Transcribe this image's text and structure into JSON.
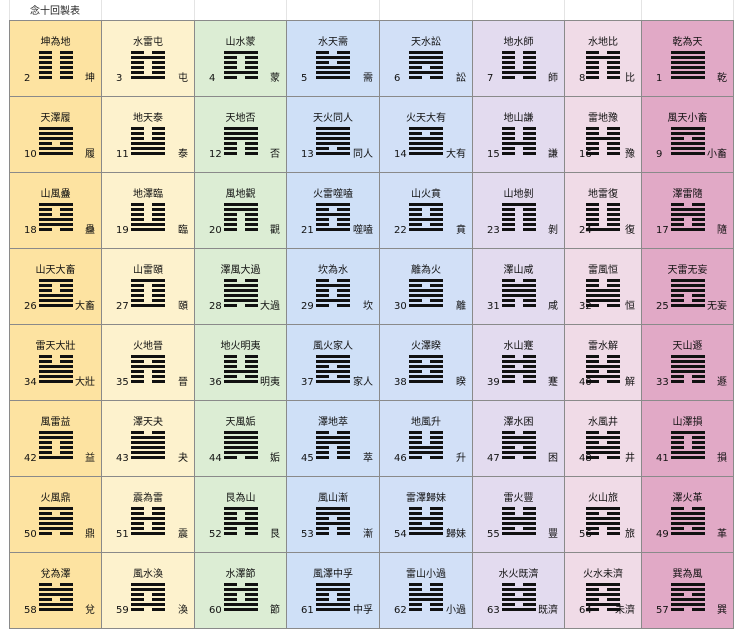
{
  "title": "念十回製表",
  "colors": [
    "#fde3a1",
    "#fdf2cd",
    "#dcedd4",
    "#cfe0f7",
    "#d2e0f7",
    "#e3dbef",
    "#f0dbe7",
    "#e1a9c6"
  ],
  "rows": [
    [
      {
        "num": "2",
        "name": "坤為地",
        "short": "坤",
        "lines": [
          0,
          0,
          0,
          0,
          0,
          0
        ]
      },
      {
        "num": "3",
        "name": "水雷屯",
        "short": "屯",
        "lines": [
          1,
          0,
          0,
          0,
          1,
          0
        ]
      },
      {
        "num": "4",
        "name": "山水蒙",
        "short": "蒙",
        "lines": [
          0,
          1,
          0,
          0,
          0,
          1
        ]
      },
      {
        "num": "5",
        "name": "水天需",
        "short": "需",
        "lines": [
          1,
          1,
          1,
          0,
          1,
          0
        ]
      },
      {
        "num": "6",
        "name": "天水訟",
        "short": "訟",
        "lines": [
          0,
          1,
          0,
          1,
          1,
          1
        ]
      },
      {
        "num": "7",
        "name": "地水師",
        "short": "師",
        "lines": [
          0,
          1,
          0,
          0,
          0,
          0
        ]
      },
      {
        "num": "8",
        "name": "水地比",
        "short": "比",
        "lines": [
          0,
          0,
          0,
          0,
          1,
          0
        ]
      },
      {
        "num": "1",
        "name": "乾為天",
        "short": "乾",
        "lines": [
          1,
          1,
          1,
          1,
          1,
          1
        ]
      }
    ],
    [
      {
        "num": "10",
        "name": "天澤履",
        "short": "履",
        "lines": [
          1,
          1,
          0,
          1,
          1,
          1
        ]
      },
      {
        "num": "11",
        "name": "地天泰",
        "short": "泰",
        "lines": [
          1,
          1,
          1,
          0,
          0,
          0
        ]
      },
      {
        "num": "12",
        "name": "天地否",
        "short": "否",
        "lines": [
          0,
          0,
          0,
          1,
          1,
          1
        ]
      },
      {
        "num": "13",
        "name": "天火同人",
        "short": "同人",
        "lines": [
          1,
          0,
          1,
          1,
          1,
          1
        ]
      },
      {
        "num": "14",
        "name": "火天大有",
        "short": "大有",
        "lines": [
          1,
          1,
          1,
          1,
          0,
          1
        ]
      },
      {
        "num": "15",
        "name": "地山謙",
        "short": "謙",
        "lines": [
          0,
          0,
          1,
          0,
          0,
          0
        ]
      },
      {
        "num": "16",
        "name": "雷地豫",
        "short": "豫",
        "lines": [
          0,
          0,
          0,
          1,
          0,
          0
        ]
      },
      {
        "num": "9",
        "name": "風天小畜",
        "short": "小畜",
        "lines": [
          1,
          1,
          1,
          0,
          1,
          1
        ]
      }
    ],
    [
      {
        "num": "18",
        "name": "山風蠱",
        "short": "蠱",
        "lines": [
          0,
          1,
          1,
          0,
          0,
          1
        ]
      },
      {
        "num": "19",
        "name": "地澤臨",
        "short": "臨",
        "lines": [
          1,
          1,
          0,
          0,
          0,
          0
        ]
      },
      {
        "num": "20",
        "name": "風地觀",
        "short": "觀",
        "lines": [
          0,
          0,
          0,
          0,
          1,
          1
        ]
      },
      {
        "num": "21",
        "name": "火雷噬嗑",
        "short": "噬嗑",
        "lines": [
          1,
          0,
          0,
          1,
          0,
          1
        ]
      },
      {
        "num": "22",
        "name": "山火賁",
        "short": "賁",
        "lines": [
          1,
          0,
          1,
          0,
          0,
          1
        ]
      },
      {
        "num": "23",
        "name": "山地剝",
        "short": "剝",
        "lines": [
          0,
          0,
          0,
          0,
          0,
          1
        ]
      },
      {
        "num": "24",
        "name": "地雷復",
        "short": "復",
        "lines": [
          1,
          0,
          0,
          0,
          0,
          0
        ]
      },
      {
        "num": "17",
        "name": "澤雷隨",
        "short": "隨",
        "lines": [
          1,
          0,
          0,
          1,
          1,
          0
        ]
      }
    ],
    [
      {
        "num": "26",
        "name": "山天大畜",
        "short": "大畜",
        "lines": [
          1,
          1,
          1,
          0,
          0,
          1
        ]
      },
      {
        "num": "27",
        "name": "山雷頤",
        "short": "頤",
        "lines": [
          1,
          0,
          0,
          0,
          0,
          1
        ]
      },
      {
        "num": "28",
        "name": "澤風大過",
        "short": "大過",
        "lines": [
          0,
          1,
          1,
          1,
          1,
          0
        ]
      },
      {
        "num": "29",
        "name": "坎為水",
        "short": "坎",
        "lines": [
          0,
          1,
          0,
          0,
          1,
          0
        ]
      },
      {
        "num": "30",
        "name": "離為火",
        "short": "離",
        "lines": [
          1,
          0,
          1,
          1,
          0,
          1
        ]
      },
      {
        "num": "31",
        "name": "澤山咸",
        "short": "咸",
        "lines": [
          0,
          0,
          1,
          1,
          1,
          0
        ]
      },
      {
        "num": "32",
        "name": "雷風恒",
        "short": "恒",
        "lines": [
          0,
          1,
          1,
          1,
          0,
          0
        ]
      },
      {
        "num": "25",
        "name": "天雷无妄",
        "short": "无妄",
        "lines": [
          1,
          0,
          0,
          1,
          1,
          1
        ]
      }
    ],
    [
      {
        "num": "34",
        "name": "雷天大壯",
        "short": "大壯",
        "lines": [
          1,
          1,
          1,
          1,
          0,
          0
        ]
      },
      {
        "num": "35",
        "name": "火地晉",
        "short": "晉",
        "lines": [
          0,
          0,
          0,
          1,
          0,
          1
        ]
      },
      {
        "num": "36",
        "name": "地火明夷",
        "short": "明夷",
        "lines": [
          1,
          0,
          1,
          0,
          0,
          0
        ]
      },
      {
        "num": "37",
        "name": "風火家人",
        "short": "家人",
        "lines": [
          1,
          0,
          1,
          0,
          1,
          1
        ]
      },
      {
        "num": "38",
        "name": "火澤睽",
        "short": "睽",
        "lines": [
          1,
          1,
          0,
          1,
          0,
          1
        ]
      },
      {
        "num": "39",
        "name": "水山蹇",
        "short": "蹇",
        "lines": [
          0,
          0,
          1,
          0,
          1,
          0
        ]
      },
      {
        "num": "40",
        "name": "雷水解",
        "short": "解",
        "lines": [
          0,
          1,
          0,
          1,
          0,
          0
        ]
      },
      {
        "num": "33",
        "name": "天山遯",
        "short": "遯",
        "lines": [
          0,
          0,
          1,
          1,
          1,
          1
        ]
      }
    ],
    [
      {
        "num": "42",
        "name": "風雷益",
        "short": "益",
        "lines": [
          1,
          0,
          0,
          0,
          1,
          1
        ]
      },
      {
        "num": "43",
        "name": "澤天夬",
        "short": "夬",
        "lines": [
          1,
          1,
          1,
          1,
          1,
          0
        ]
      },
      {
        "num": "44",
        "name": "天風姤",
        "short": "姤",
        "lines": [
          0,
          1,
          1,
          1,
          1,
          1
        ]
      },
      {
        "num": "45",
        "name": "澤地萃",
        "short": "萃",
        "lines": [
          0,
          0,
          0,
          1,
          1,
          0
        ]
      },
      {
        "num": "46",
        "name": "地風升",
        "short": "升",
        "lines": [
          0,
          1,
          1,
          0,
          0,
          0
        ]
      },
      {
        "num": "47",
        "name": "澤水困",
        "short": "困",
        "lines": [
          0,
          1,
          0,
          1,
          1,
          0
        ]
      },
      {
        "num": "48",
        "name": "水風井",
        "short": "井",
        "lines": [
          0,
          1,
          1,
          0,
          1,
          0
        ]
      },
      {
        "num": "41",
        "name": "山澤損",
        "short": "損",
        "lines": [
          1,
          1,
          0,
          0,
          0,
          1
        ]
      }
    ],
    [
      {
        "num": "50",
        "name": "火風鼎",
        "short": "鼎",
        "lines": [
          0,
          1,
          1,
          1,
          0,
          1
        ]
      },
      {
        "num": "51",
        "name": "震為雷",
        "short": "震",
        "lines": [
          1,
          0,
          0,
          1,
          0,
          0
        ]
      },
      {
        "num": "52",
        "name": "艮為山",
        "short": "艮",
        "lines": [
          0,
          0,
          1,
          0,
          0,
          1
        ]
      },
      {
        "num": "53",
        "name": "風山漸",
        "short": "漸",
        "lines": [
          0,
          0,
          1,
          0,
          1,
          1
        ]
      },
      {
        "num": "54",
        "name": "雷澤歸妹",
        "short": "歸妹",
        "lines": [
          1,
          1,
          0,
          1,
          0,
          0
        ]
      },
      {
        "num": "55",
        "name": "雷火豐",
        "short": "豐",
        "lines": [
          1,
          0,
          1,
          1,
          0,
          0
        ]
      },
      {
        "num": "56",
        "name": "火山旅",
        "short": "旅",
        "lines": [
          0,
          0,
          1,
          1,
          0,
          1
        ]
      },
      {
        "num": "49",
        "name": "澤火革",
        "short": "革",
        "lines": [
          1,
          0,
          1,
          1,
          1,
          0
        ]
      }
    ],
    [
      {
        "num": "58",
        "name": "兌為澤",
        "short": "兌",
        "lines": [
          1,
          1,
          0,
          1,
          1,
          0
        ]
      },
      {
        "num": "59",
        "name": "風水渙",
        "short": "渙",
        "lines": [
          0,
          1,
          0,
          0,
          1,
          1
        ]
      },
      {
        "num": "60",
        "name": "水澤節",
        "short": "節",
        "lines": [
          1,
          1,
          0,
          0,
          1,
          0
        ]
      },
      {
        "num": "61",
        "name": "風澤中孚",
        "short": "中孚",
        "lines": [
          1,
          1,
          0,
          0,
          1,
          1
        ]
      },
      {
        "num": "62",
        "name": "雷山小過",
        "short": "小過",
        "lines": [
          0,
          0,
          1,
          1,
          0,
          0
        ]
      },
      {
        "num": "63",
        "name": "水火既濟",
        "short": "既濟",
        "lines": [
          1,
          0,
          1,
          0,
          1,
          0
        ]
      },
      {
        "num": "64",
        "name": "火水未濟",
        "short": "未濟",
        "lines": [
          0,
          1,
          0,
          1,
          0,
          1
        ]
      },
      {
        "num": "57",
        "name": "巽為風",
        "short": "巽",
        "lines": [
          0,
          1,
          1,
          0,
          1,
          1
        ]
      }
    ]
  ]
}
